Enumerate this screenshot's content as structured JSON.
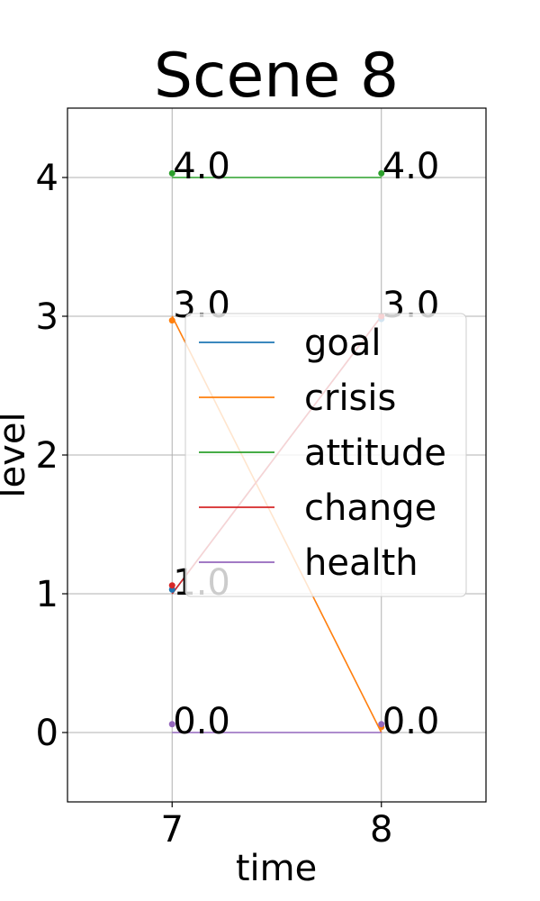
{
  "chart_data": {
    "type": "line",
    "title": "Scene 8",
    "xlabel": "time",
    "ylabel": "level",
    "x": [
      7,
      8
    ],
    "xticks": [
      "7",
      "8"
    ],
    "yticks": [
      "0",
      "1",
      "2",
      "3",
      "4"
    ],
    "xlim": [
      6.5,
      8.5
    ],
    "ylim": [
      -0.5,
      4.5
    ],
    "grid": true,
    "legend_position": "center-right",
    "series": [
      {
        "name": "goal",
        "values": [
          1,
          3
        ],
        "color": "#1f77b4"
      },
      {
        "name": "crisis",
        "values": [
          3,
          0
        ],
        "color": "#ff7f0e"
      },
      {
        "name": "attitude",
        "values": [
          4,
          4
        ],
        "color": "#2ca02c"
      },
      {
        "name": "change",
        "values": [
          1,
          3
        ],
        "color": "#d62728"
      },
      {
        "name": "health",
        "values": [
          0,
          0
        ],
        "color": "#9467bd"
      }
    ],
    "data_labels": [
      {
        "x": 7,
        "y": 4,
        "text": "4.0"
      },
      {
        "x": 8,
        "y": 4,
        "text": "4.0"
      },
      {
        "x": 7,
        "y": 3,
        "text": "3.0"
      },
      {
        "x": 8,
        "y": 3,
        "text": "3.0"
      },
      {
        "x": 7,
        "y": 1,
        "text": "1.0"
      },
      {
        "x": 7,
        "y": 0,
        "text": "0.0"
      },
      {
        "x": 8,
        "y": 0,
        "text": "0.0"
      }
    ]
  }
}
